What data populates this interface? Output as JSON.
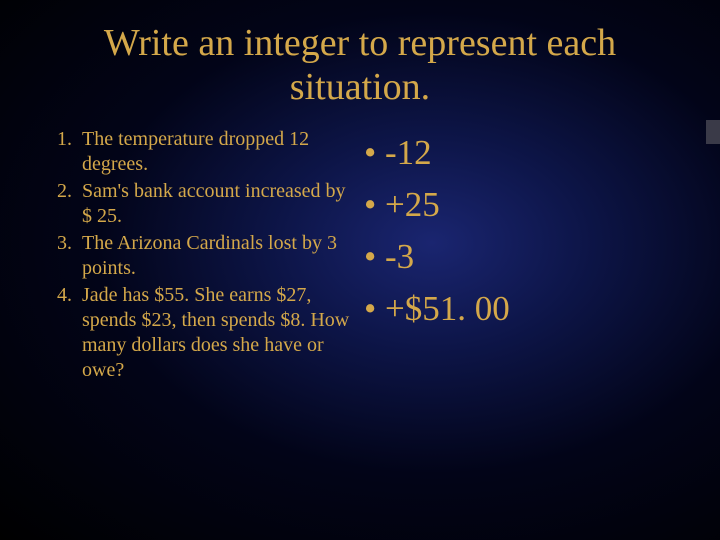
{
  "title": "Write an integer to represent each situation.",
  "questions": [
    {
      "n": "1.",
      "text": "The temperature dropped 12 degrees."
    },
    {
      "n": "2.",
      "text": "Sam's bank account increased by $ 25."
    },
    {
      "n": "3.",
      "text": "The Arizona Cardinals lost by 3 points."
    },
    {
      "n": "4.",
      "text": "Jade has $55. She earns $27, spends $23,  then spends $8. How many dollars does she have or owe?"
    }
  ],
  "answers": [
    "-12",
    "+25",
    "-3",
    "+$51. 00"
  ],
  "colors": {
    "text": "#d4a84a",
    "bg_center": "#1a2570",
    "bg_edge": "#000000"
  },
  "fonts": {
    "title_size": 38,
    "question_size": 20,
    "answer_size": 35,
    "family": "Times New Roman"
  }
}
